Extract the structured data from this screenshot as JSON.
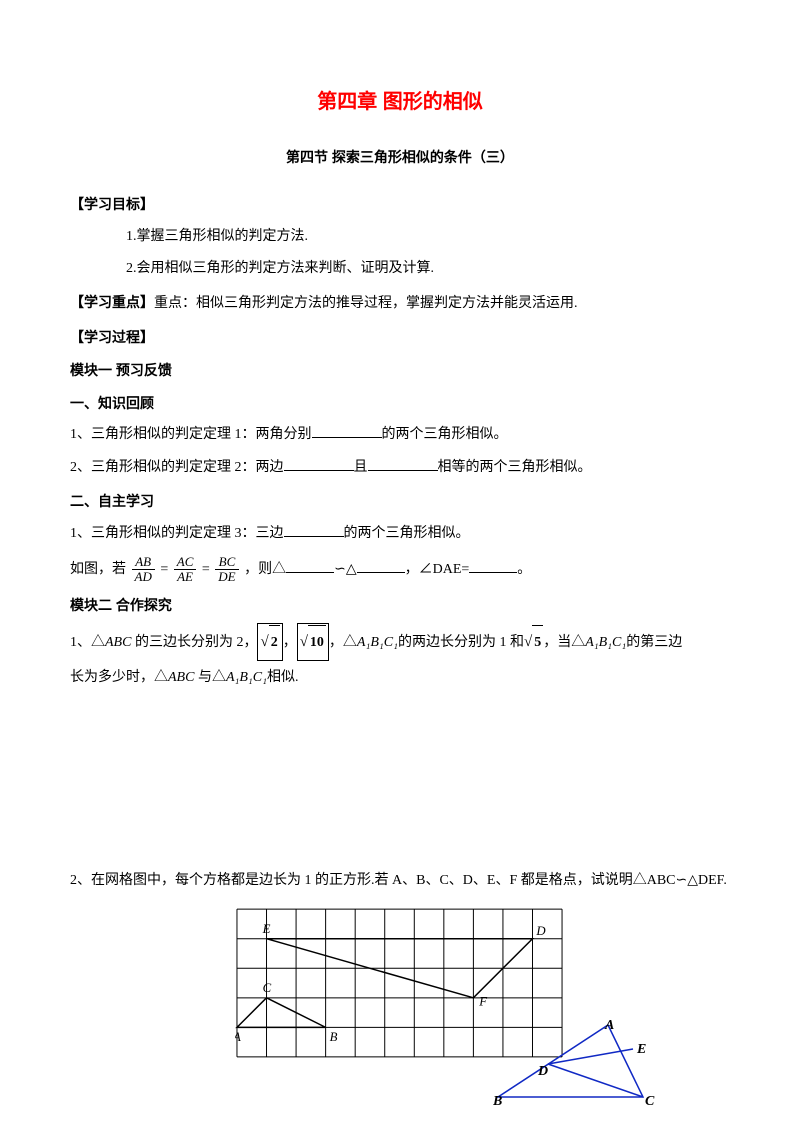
{
  "chapter_title": "第四章  图形的相似",
  "section_title": "第四节   探索三角形相似的条件（三）",
  "goals_header": "【学习目标】",
  "goal1": "1.掌握三角形相似的判定方法.",
  "goal2": "2.会用相似三角形的判定方法来判断、证明及计算.",
  "focus_header": "【学习重点】",
  "focus_text": "重点：相似三角形判定方法的推导过程，掌握判定方法并能灵活运用.",
  "process_header": "【学习过程】",
  "module1_header": "模块一    预习反馈",
  "review_header": "一、知识回顾",
  "review1_pre": "1、三角形相似的判定定理 1：两角分别",
  "review1_post": "的两个三角形相似。",
  "review2_pre": "2、三角形相似的判定定理 2：两边",
  "review2_mid": "且",
  "review2_post": "相等的两个三角形相似。",
  "selfstudy_header": "二、自主学习",
  "selfstudy1_pre": "1、三角形相似的判定定理 3：三边",
  "selfstudy1_post": "的两个三角形相似。",
  "asfig_pre": "如图，若 ",
  "asfig_then": "，则△",
  "asfig_sim": "∽△",
  "asfig_comma": "，∠DAE=",
  "asfig_end": "。",
  "frac1_num": "AB",
  "frac1_den": "AD",
  "frac2_num": "AC",
  "frac2_den": "AE",
  "frac3_num": "BC",
  "frac3_den": "DE",
  "module2_header": "模块二    合作探究",
  "q1_a": "1、△",
  "q1_abc": "ABC",
  "q1_b": " 的三边长分别为 2，",
  "q1_sqrt2": "2",
  "q1_c": "，",
  "q1_sqrt10": "10",
  "q1_d": "，△",
  "q1_a1b1c1": "A₁B₁C₁",
  "q1_e": "的两边长分别为 1 和",
  "q1_sqrt5": "5",
  "q1_f": "，当△",
  "q1_g": "的第三边",
  "q1_h": "长为多少时，△",
  "q1_i": " 与△",
  "q1_j": "相似.",
  "q2_text": "2、在网格图中，每个方格都是边长为 1 的正方形.若 A、B、C、D、E、F 都是格点，试说明△ABC∽△DEF.",
  "fig1": {
    "stroke": "#1029c4",
    "labels": {
      "A": "A",
      "B": "B",
      "C": "C",
      "D": "D",
      "E": "E"
    }
  },
  "grid": {
    "cols": 11,
    "rows": 5,
    "cell": 30,
    "stroke_grid": "#000000",
    "stroke_shape": "#000000",
    "labels": {
      "A": "A",
      "B": "B",
      "C": "C",
      "D": "D",
      "E": "E",
      "F": "F"
    }
  }
}
